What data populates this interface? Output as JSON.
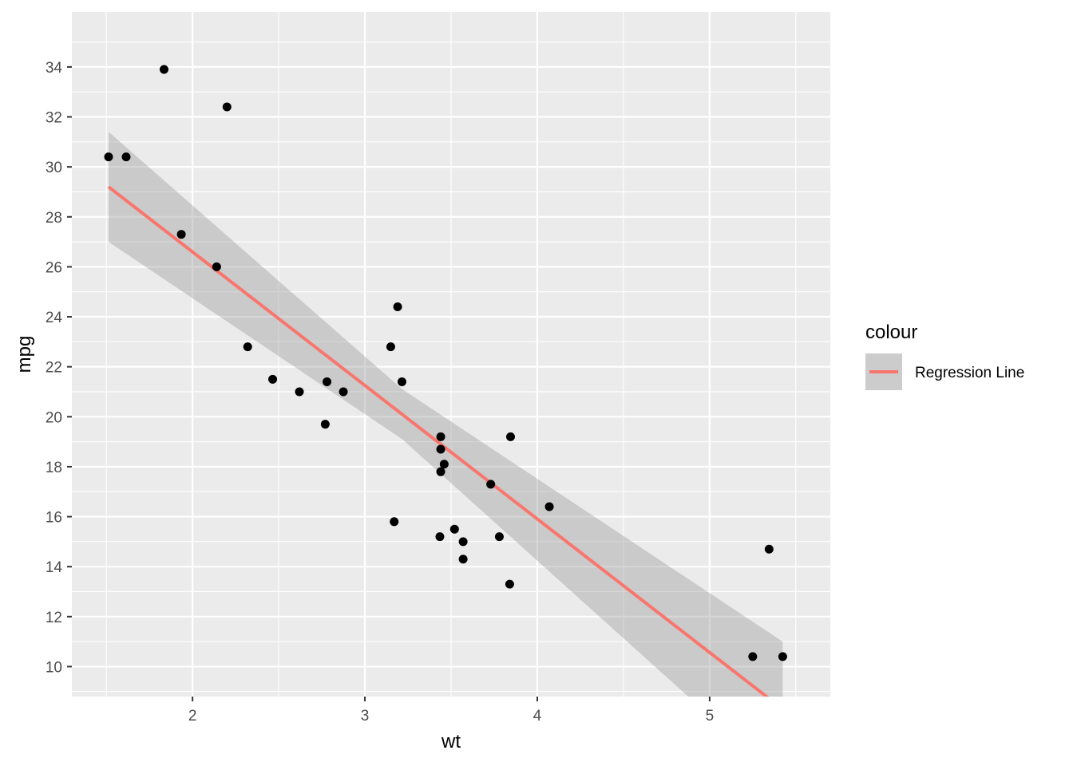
{
  "chart_data": {
    "type": "scatter",
    "xlabel": "wt",
    "ylabel": "mpg",
    "xlim": [
      1.3,
      5.7
    ],
    "ylim": [
      8.8,
      36.2
    ],
    "x_ticks": [
      2,
      3,
      4,
      5
    ],
    "y_ticks": [
      10,
      12,
      14,
      16,
      18,
      20,
      22,
      24,
      26,
      28,
      30,
      32,
      34
    ],
    "grid": true,
    "colors": {
      "panel": "#ebebeb",
      "grid": "#ffffff",
      "points": "#000000",
      "line": "#f8766d",
      "ribbon": "#999999"
    },
    "points": [
      {
        "x": 2.62,
        "y": 21.0
      },
      {
        "x": 2.875,
        "y": 21.0
      },
      {
        "x": 2.32,
        "y": 22.8
      },
      {
        "x": 3.215,
        "y": 21.4
      },
      {
        "x": 3.44,
        "y": 18.7
      },
      {
        "x": 3.46,
        "y": 18.1
      },
      {
        "x": 3.57,
        "y": 14.3
      },
      {
        "x": 3.19,
        "y": 24.4
      },
      {
        "x": 3.15,
        "y": 22.8
      },
      {
        "x": 3.44,
        "y": 19.2
      },
      {
        "x": 3.44,
        "y": 17.8
      },
      {
        "x": 4.07,
        "y": 16.4
      },
      {
        "x": 3.73,
        "y": 17.3
      },
      {
        "x": 3.78,
        "y": 15.2
      },
      {
        "x": 5.25,
        "y": 10.4
      },
      {
        "x": 5.424,
        "y": 10.4
      },
      {
        "x": 5.345,
        "y": 14.7
      },
      {
        "x": 2.2,
        "y": 32.4
      },
      {
        "x": 1.615,
        "y": 30.4
      },
      {
        "x": 1.835,
        "y": 33.9
      },
      {
        "x": 2.465,
        "y": 21.5
      },
      {
        "x": 3.52,
        "y": 15.5
      },
      {
        "x": 3.435,
        "y": 15.2
      },
      {
        "x": 3.84,
        "y": 13.3
      },
      {
        "x": 3.845,
        "y": 19.2
      },
      {
        "x": 1.935,
        "y": 27.3
      },
      {
        "x": 2.14,
        "y": 26.0
      },
      {
        "x": 1.513,
        "y": 30.4
      },
      {
        "x": 3.17,
        "y": 15.8
      },
      {
        "x": 2.77,
        "y": 19.7
      },
      {
        "x": 3.57,
        "y": 15.0
      },
      {
        "x": 2.78,
        "y": 21.4
      }
    ],
    "regression": {
      "name": "Regression Line",
      "intercept": 37.285,
      "slope": -5.344,
      "x_range": [
        1.513,
        5.424
      ],
      "ribbon": [
        {
          "x": 1.513,
          "lo": 27.0,
          "hi": 31.4
        },
        {
          "x": 3.217,
          "lo": 19.1,
          "hi": 21.1
        },
        {
          "x": 5.424,
          "lo": 5.4,
          "hi": 11.0
        }
      ]
    },
    "legend": {
      "title": "colour",
      "entries": [
        "Regression Line"
      ],
      "position": "right"
    }
  }
}
